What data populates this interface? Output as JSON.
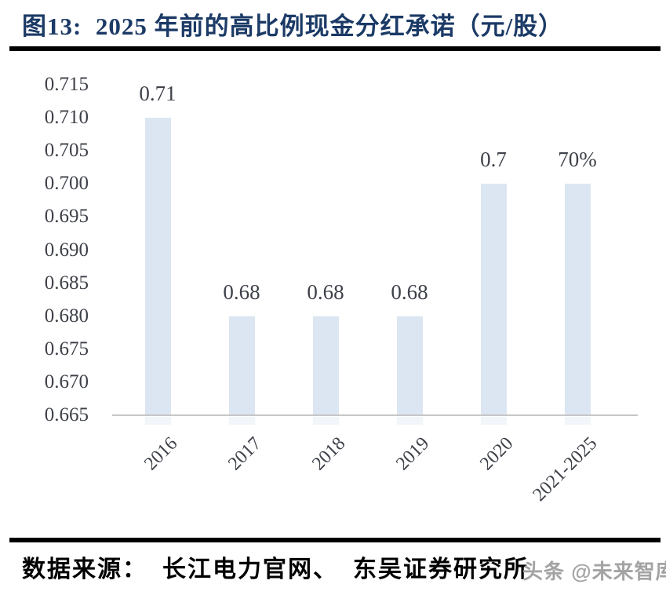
{
  "figure": {
    "title": "图13:  2025 年前的高比例现金分红承诺（元/股）",
    "source": "数据来源：  长江电力官网、  东吴证券研究所",
    "watermark": "头条 @未来智库"
  },
  "chart_data": {
    "type": "bar",
    "title": "2025 年前的高比例现金分红承诺（元/股）",
    "categories": [
      "2016",
      "2017",
      "2018",
      "2019",
      "2020",
      "2021-2025"
    ],
    "values": [
      0.71,
      0.68,
      0.68,
      0.68,
      0.7,
      0.7
    ],
    "data_labels": [
      "0.71",
      "0.68",
      "0.68",
      "0.68",
      "0.7",
      "70%"
    ],
    "xlabel": "",
    "ylabel": "",
    "ylim": [
      0.665,
      0.715
    ],
    "ytick_step": 0.005,
    "yticks": [
      "0.715",
      "0.710",
      "0.705",
      "0.700",
      "0.695",
      "0.690",
      "0.685",
      "0.680",
      "0.675",
      "0.670",
      "0.665"
    ],
    "grid": false,
    "legend": false,
    "colors": {
      "bar_fill": "#dbe6f2",
      "axis_line": "#c7c7c7",
      "tick_label": "#3e4149",
      "data_label": "#3e4149",
      "title": "#1b3a66",
      "divider": "#000000",
      "source_text": "#000000",
      "watermark": "#a3a3a3"
    }
  }
}
